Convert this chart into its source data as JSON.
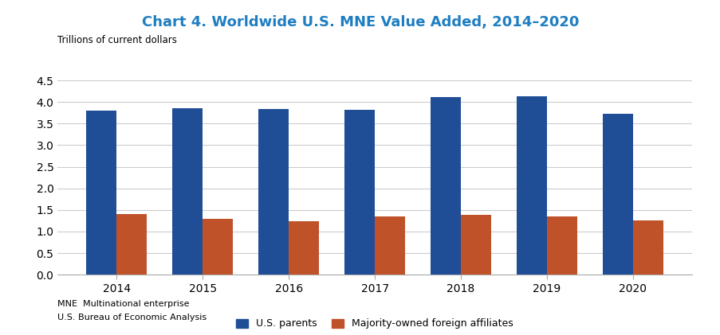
{
  "title": "Chart 4. Worldwide U.S. MNE Value Added, 2014–2020",
  "ylabel": "Trillions of current dollars",
  "years": [
    2014,
    2015,
    2016,
    2017,
    2018,
    2019,
    2020
  ],
  "us_parents": [
    3.8,
    3.85,
    3.83,
    3.81,
    4.12,
    4.14,
    3.73
  ],
  "foreign_affiliates": [
    1.41,
    1.29,
    1.23,
    1.35,
    1.38,
    1.35,
    1.26
  ],
  "bar_color_blue": "#1F4E97",
  "bar_color_orange": "#C0522A",
  "ylim": [
    0,
    4.5
  ],
  "yticks": [
    0.0,
    0.5,
    1.0,
    1.5,
    2.0,
    2.5,
    3.0,
    3.5,
    4.0,
    4.5
  ],
  "title_color": "#1F7EC2",
  "ylabel_fontsize": 8.5,
  "title_fontsize": 13,
  "tick_fontsize": 10,
  "legend_labels": [
    "U.S. parents",
    "Majority-owned foreign affiliates"
  ],
  "footnote1": "MNE  Multinational enterprise",
  "footnote2": "U.S. Bureau of Economic Analysis",
  "background_color": "#FFFFFF",
  "grid_color": "#CCCCCC"
}
